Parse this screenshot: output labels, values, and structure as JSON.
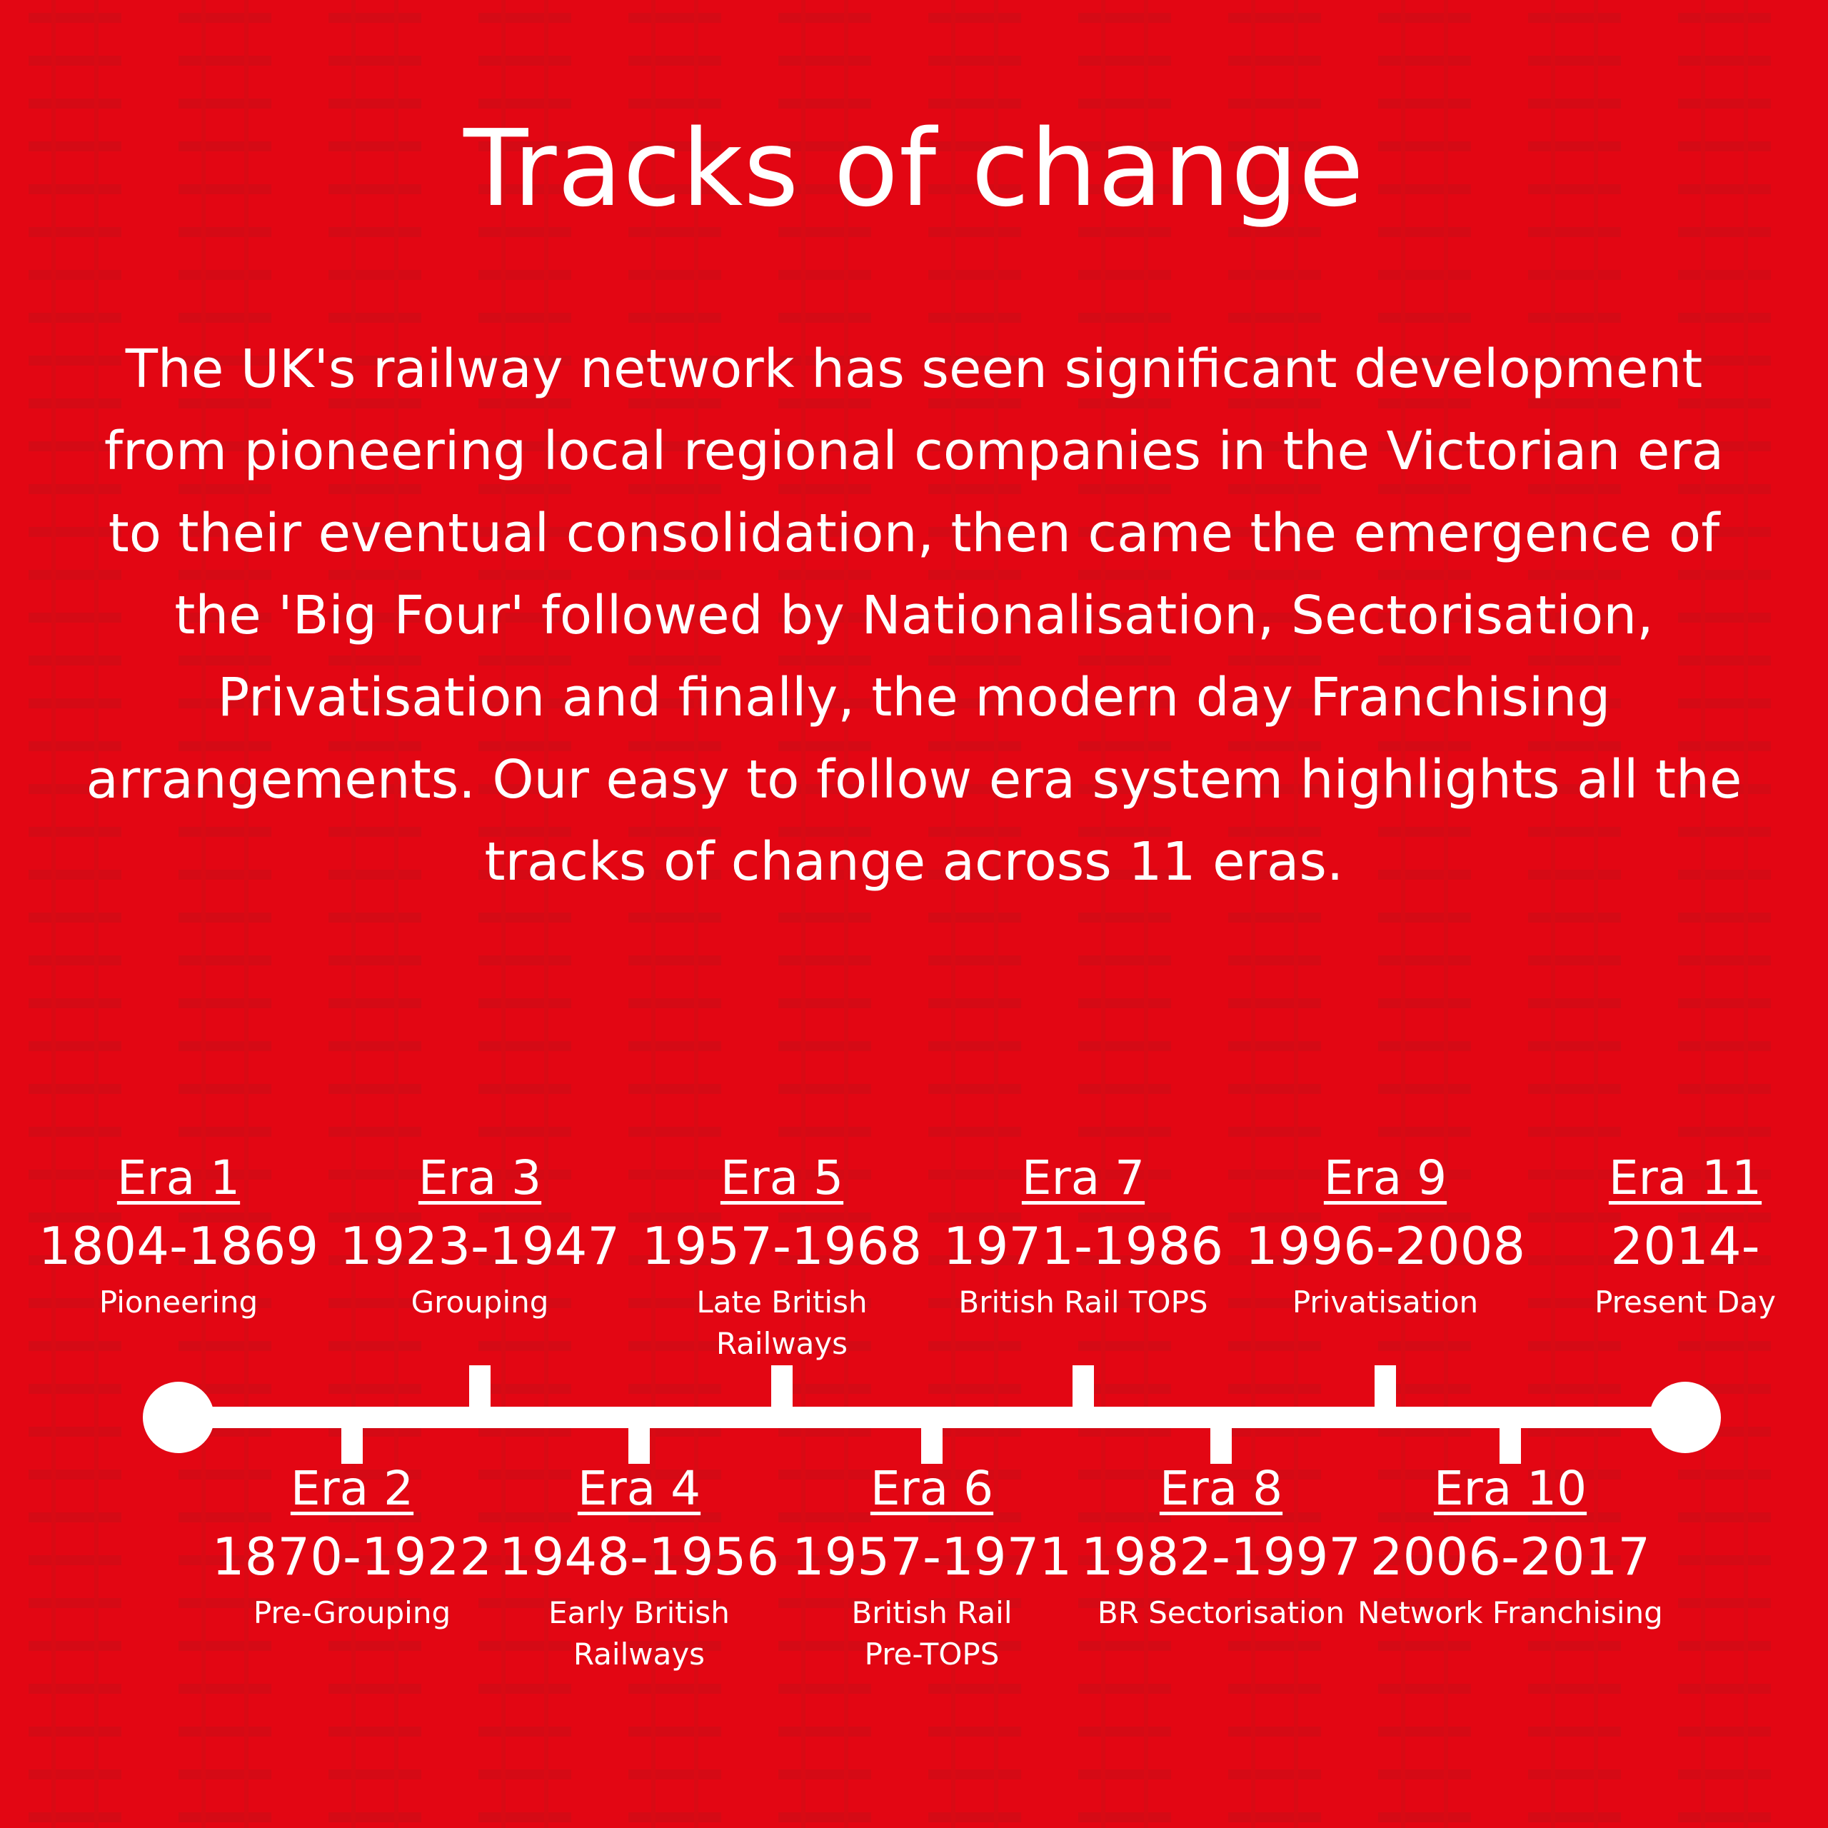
{
  "title": "Tracks of change",
  "intro": "The UK's railway network has seen significant development from pioneering local regional companies in the Victorian era to their eventual consolidation, then came the emergence of the 'Big Four' followed by Nationalisation, Sectorisation, Privatisation and finally, the modern day Franchising arrangements. Our easy to follow era system highlights all the tracks of change across 11 eras.",
  "colors": {
    "background": "#e30613",
    "pattern": "#c90d16",
    "foreground": "#ffffff"
  },
  "eras": [
    {
      "name": "Era 1",
      "years": "1804-1869",
      "label": "Pioneering",
      "side": "top"
    },
    {
      "name": "Era 2",
      "years": "1870-1922",
      "label": "Pre-Grouping",
      "side": "bottom"
    },
    {
      "name": "Era 3",
      "years": "1923-1947",
      "label": "Grouping",
      "side": "top"
    },
    {
      "name": "Era 4",
      "years": "1948-1956",
      "label": "Early British Railways",
      "side": "bottom"
    },
    {
      "name": "Era 5",
      "years": "1957-1968",
      "label": "Late British Railways",
      "side": "top"
    },
    {
      "name": "Era 6",
      "years": "1957-1971",
      "label": "British Rail Pre-TOPS",
      "side": "bottom"
    },
    {
      "name": "Era 7",
      "years": "1971-1986",
      "label": "British Rail TOPS",
      "side": "top"
    },
    {
      "name": "Era 8",
      "years": "1982-1997",
      "label": "BR Sectorisation",
      "side": "bottom"
    },
    {
      "name": "Era 9",
      "years": "1996-2008",
      "label": "Privatisation",
      "side": "top"
    },
    {
      "name": "Era 10",
      "years": "2006-2017",
      "label": "Network Franchising",
      "side": "bottom"
    },
    {
      "name": "Era 11",
      "years": "2014-",
      "label": "Present Day",
      "side": "top"
    }
  ]
}
